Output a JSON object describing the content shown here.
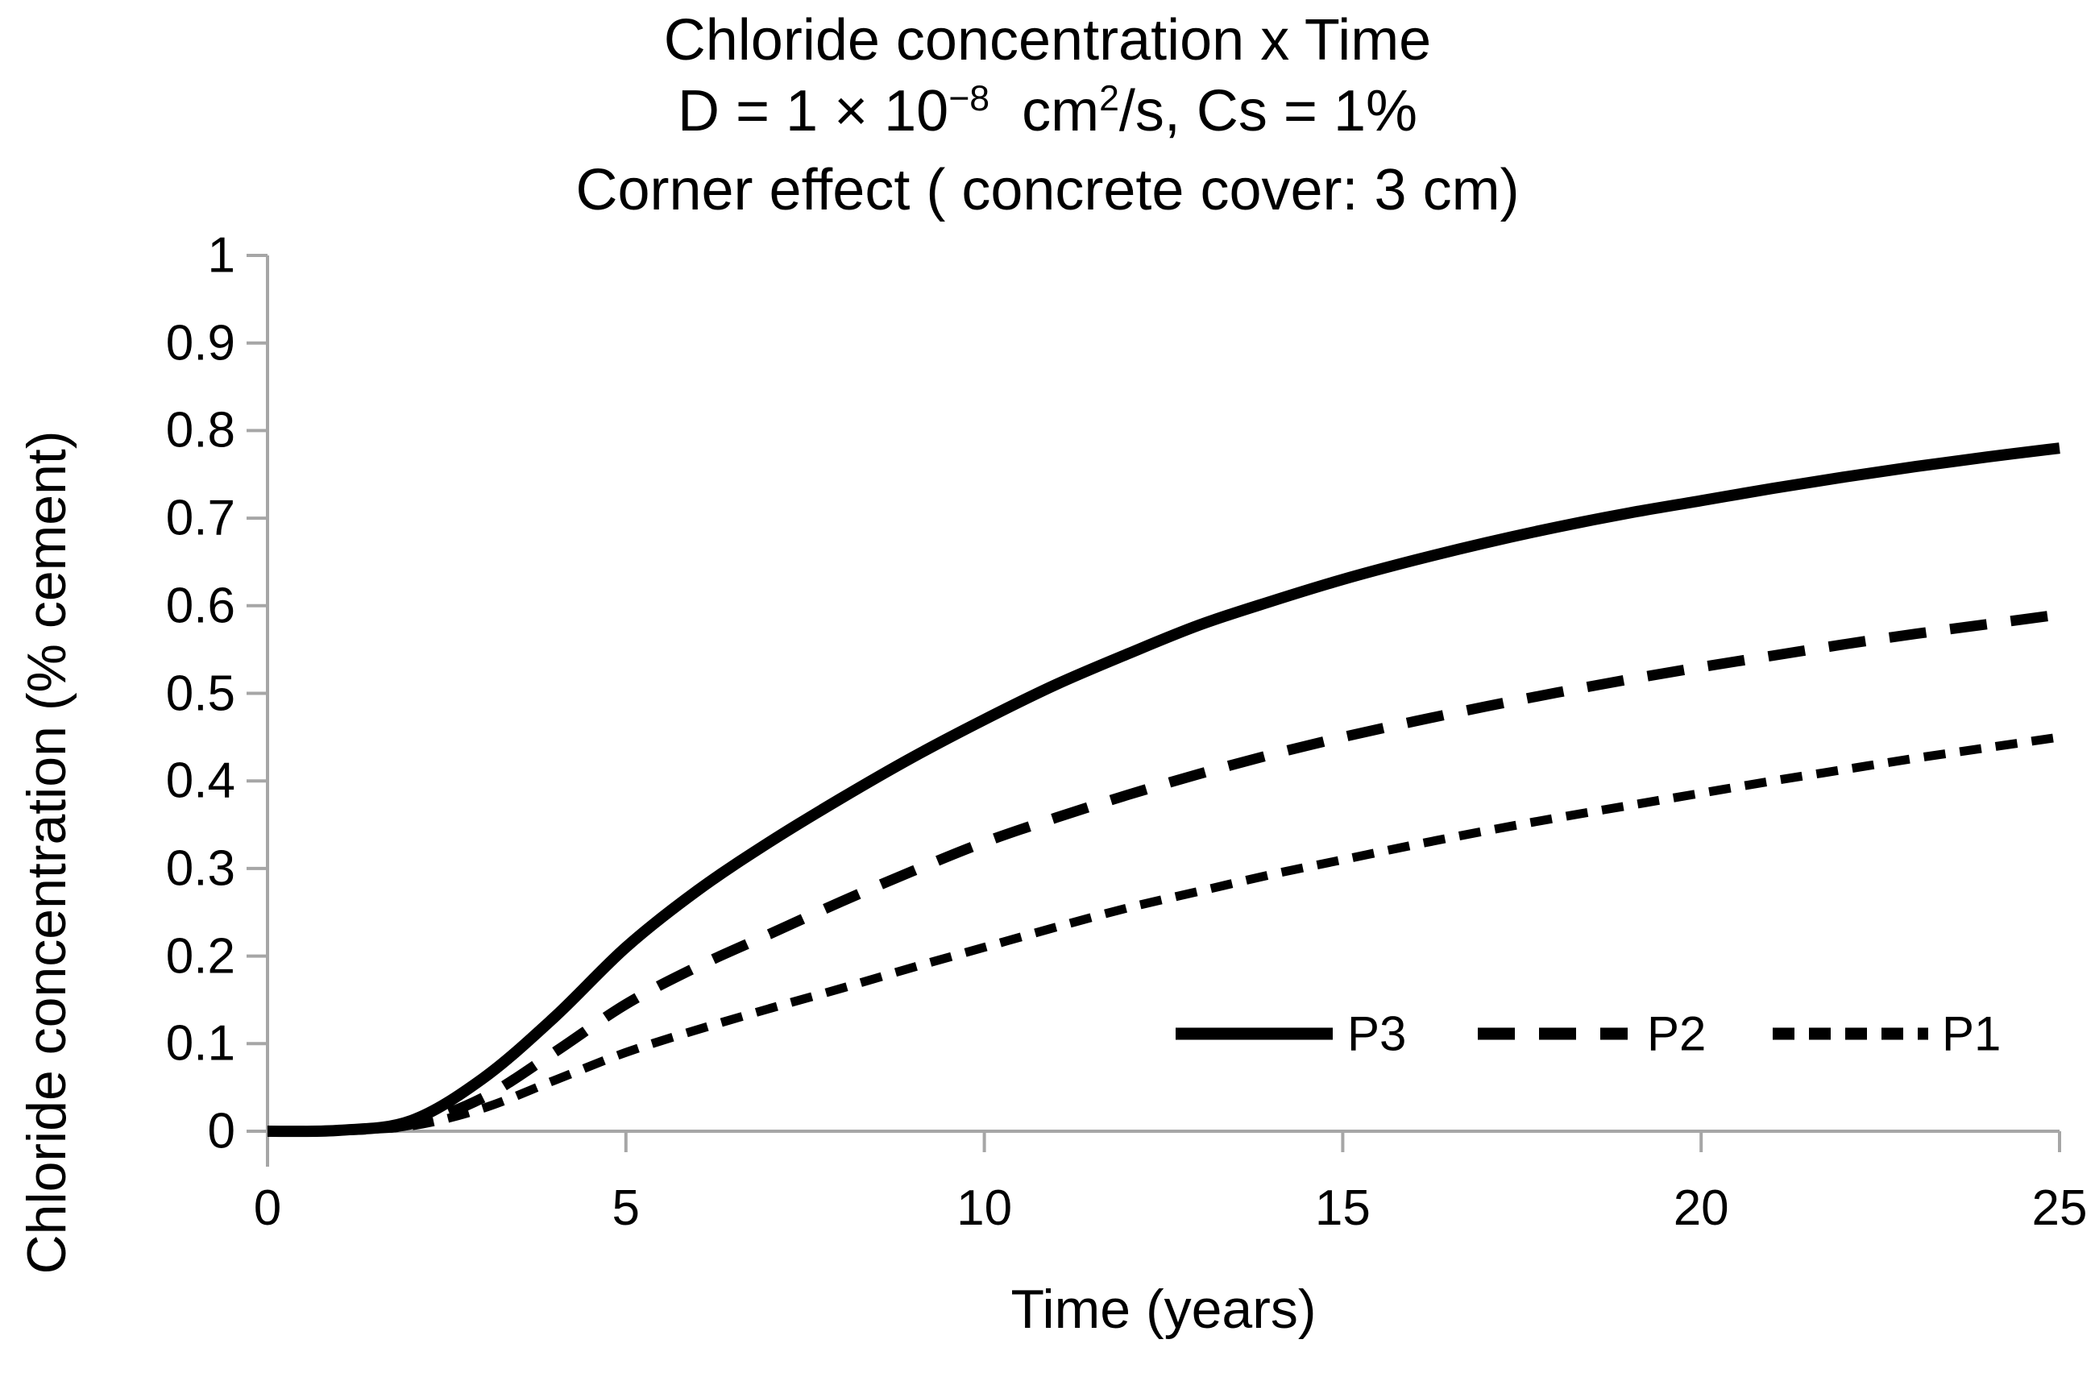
{
  "title": {
    "line1": "Chloride concentration x Time",
    "line2_parts": {
      "base1": "D = 1 × 10",
      "sup1": "−8",
      "base2": "  cm",
      "sup2": "2",
      "base3": "/s, Cs = 1%"
    },
    "line3": "Corner effect ( concrete cover: 3 cm)"
  },
  "axes": {
    "x_title": "Time (years)",
    "y_title": "Chloride concentration (% cement)",
    "x_ticks": [
      {
        "v": 0,
        "label": "0"
      },
      {
        "v": 5,
        "label": "5"
      },
      {
        "v": 10,
        "label": "10"
      },
      {
        "v": 15,
        "label": "15"
      },
      {
        "v": 20,
        "label": "20"
      },
      {
        "v": 25,
        "label": "25"
      }
    ],
    "y_ticks": [
      {
        "v": 0.0,
        "label": "0"
      },
      {
        "v": 0.1,
        "label": "0.1"
      },
      {
        "v": 0.2,
        "label": "0.2"
      },
      {
        "v": 0.3,
        "label": "0.3"
      },
      {
        "v": 0.4,
        "label": "0.4"
      },
      {
        "v": 0.5,
        "label": "0.5"
      },
      {
        "v": 0.6,
        "label": "0.6"
      },
      {
        "v": 0.7,
        "label": "0.7"
      },
      {
        "v": 0.8,
        "label": "0.8"
      },
      {
        "v": 0.9,
        "label": "0.9"
      },
      {
        "v": 1.0,
        "label": "1"
      }
    ]
  },
  "colors": {
    "curve": "#000000",
    "axis": "#a6a6a6",
    "text": "#000000",
    "background": "#ffffff"
  },
  "chart_data": {
    "type": "line",
    "title": "Chloride concentration x Time",
    "subtitle": "D = 1 × 10−8 cm2/s, Cs = 1%",
    "subtitle2": "Corner effect ( concrete cover: 3 cm)",
    "xlabel": "Time (years)",
    "ylabel": "Chloride concentration (% cement)",
    "xlim": [
      0,
      25
    ],
    "ylim": [
      0,
      1
    ],
    "x_tick_step": 5,
    "y_tick_step": 0.1,
    "grid": false,
    "legend_position": "inside-lower-right",
    "x": [
      0,
      1,
      2,
      3,
      4,
      5,
      6,
      7,
      8,
      9,
      10,
      11,
      12,
      13,
      14,
      15,
      16,
      17,
      18,
      19,
      20,
      21,
      22,
      23,
      24,
      25
    ],
    "series": [
      {
        "name": "P3",
        "style": "solid",
        "values": [
          0,
          0.001,
          0.012,
          0.06,
          0.13,
          0.21,
          0.275,
          0.33,
          0.38,
          0.427,
          0.47,
          0.51,
          0.545,
          0.578,
          0.605,
          0.63,
          0.652,
          0.672,
          0.69,
          0.706,
          0.72,
          0.734,
          0.747,
          0.759,
          0.77,
          0.78
        ]
      },
      {
        "name": "P2",
        "style": "long-dash",
        "values": [
          0,
          0.001,
          0.008,
          0.038,
          0.09,
          0.145,
          0.188,
          0.225,
          0.262,
          0.297,
          0.33,
          0.358,
          0.384,
          0.408,
          0.43,
          0.45,
          0.468,
          0.485,
          0.501,
          0.516,
          0.53,
          0.543,
          0.556,
          0.568,
          0.579,
          0.59
        ]
      },
      {
        "name": "P1",
        "style": "short-dash",
        "values": [
          0,
          0.001,
          0.006,
          0.026,
          0.058,
          0.09,
          0.116,
          0.14,
          0.163,
          0.187,
          0.21,
          0.233,
          0.255,
          0.274,
          0.293,
          0.31,
          0.327,
          0.343,
          0.358,
          0.372,
          0.386,
          0.4,
          0.413,
          0.426,
          0.438,
          0.45
        ]
      }
    ]
  }
}
